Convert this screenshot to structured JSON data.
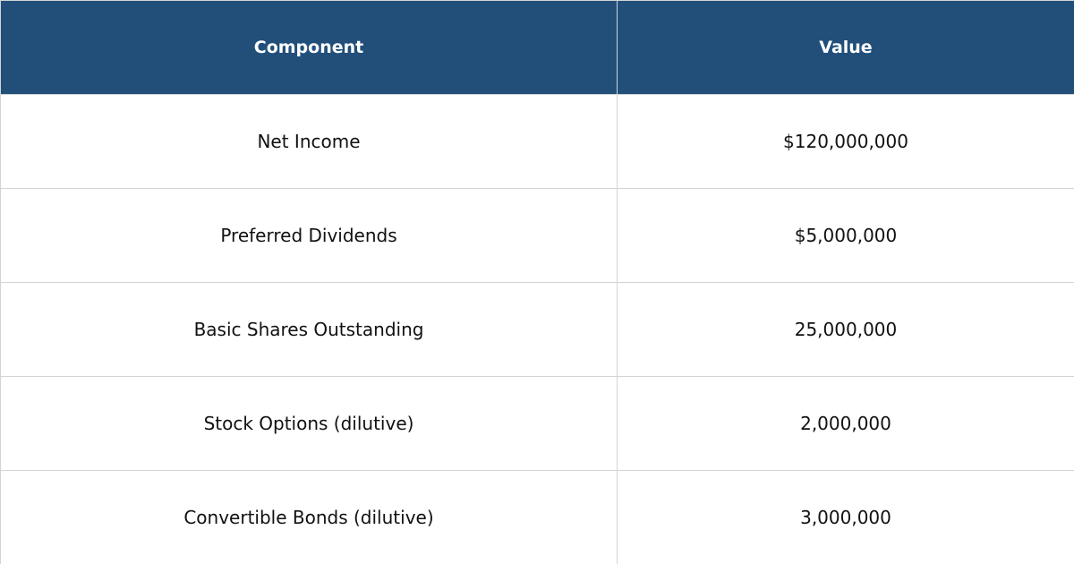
{
  "table": {
    "header": [
      "Component",
      "Value"
    ],
    "rows": [
      [
        "Net Income",
        "$120,000,000"
      ],
      [
        "Preferred Dividends",
        "$5,000,000"
      ],
      [
        "Basic Shares Outstanding",
        "25,000,000"
      ],
      [
        "Stock Options (dilutive)",
        "2,000,000"
      ],
      [
        "Convertible Bonds (dilutive)",
        "3,000,000"
      ]
    ]
  }
}
